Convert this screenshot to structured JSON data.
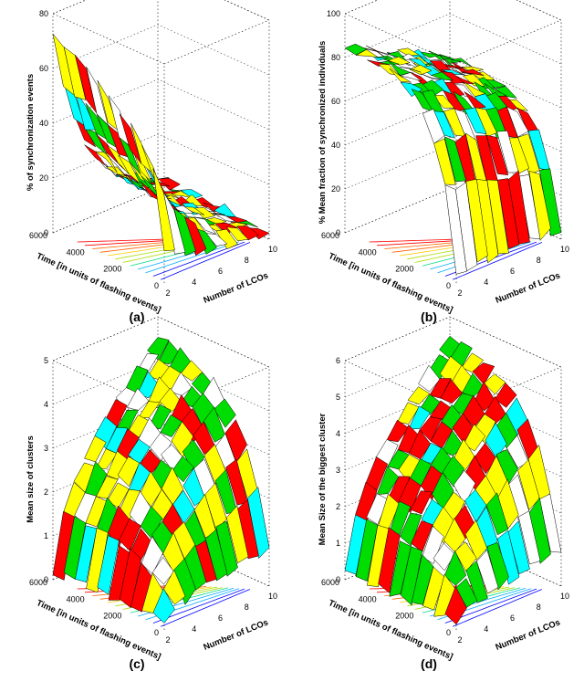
{
  "figure": {
    "panels": [
      {
        "label": "(a)"
      },
      {
        "label": "(b)"
      },
      {
        "label": "(c)"
      },
      {
        "label": "(d)"
      }
    ]
  },
  "palette": {
    "yellow": "#ffff00",
    "green": "#00dd00",
    "red": "#ff0000",
    "cyan": "#00ffff",
    "white": "#ffffff",
    "mesh": "#000000",
    "contours": [
      "#0000ff",
      "#00aaff",
      "#00dd88",
      "#aadd00",
      "#ffcc00",
      "#ff6600",
      "#ff0000"
    ]
  },
  "chart_data": [
    {
      "type": "surface",
      "label": "(a)",
      "zlabel": "% of synchronization events",
      "xlabel": "Number of LCOs",
      "ylabel": "Time [in units of flashing events]",
      "x_ticks": [
        "2",
        "4",
        "6",
        "8",
        "10"
      ],
      "y_ticks": [
        "0",
        "2000",
        "4000",
        "6000"
      ],
      "z_ticks": [
        "0",
        "20",
        "40",
        "60",
        "80"
      ],
      "xlim": [
        2,
        10
      ],
      "ylim": [
        0,
        6000
      ],
      "zlim": [
        0,
        80
      ],
      "surface_profile": "decay",
      "z_max": 72,
      "z_min": 2
    },
    {
      "type": "surface",
      "label": "(b)",
      "zlabel": "% Mean fraction of synchronized individuals",
      "xlabel": "Number of LCOs",
      "ylabel": "Time [in units of flashing events]",
      "x_ticks": [
        "2",
        "4",
        "6",
        "8",
        "10"
      ],
      "y_ticks": [
        "0",
        "2000",
        "4000",
        "6000"
      ],
      "z_ticks": [
        "0",
        "20",
        "40",
        "60",
        "80",
        "100"
      ],
      "xlim": [
        2,
        10
      ],
      "ylim": [
        0,
        6000
      ],
      "zlim": [
        0,
        100
      ],
      "surface_profile": "saturate",
      "z_max": 85,
      "z_min": 5
    },
    {
      "type": "surface",
      "label": "(c)",
      "zlabel": "Mean size of clusters",
      "xlabel": "Number of LCOs",
      "ylabel": "Time [in units of flashing events]",
      "x_ticks": [
        "2",
        "4",
        "6",
        "8",
        "10"
      ],
      "y_ticks": [
        "0",
        "2000",
        "4000",
        "6000"
      ],
      "z_ticks": [
        "0",
        "1",
        "2",
        "3",
        "4",
        "5"
      ],
      "xlim": [
        2,
        10
      ],
      "ylim": [
        0,
        6000
      ],
      "zlim": [
        0,
        5
      ],
      "surface_profile": "grow",
      "z_max": 4.6,
      "z_min": 0.2
    },
    {
      "type": "surface",
      "label": "(d)",
      "zlabel": "Mean Size of the biggest cluster",
      "xlabel": "Number of LCOs",
      "ylabel": "Time [in units of flashing events]",
      "x_ticks": [
        "2",
        "4",
        "6",
        "8",
        "10"
      ],
      "y_ticks": [
        "0",
        "2000",
        "4000",
        "6000"
      ],
      "z_ticks": [
        "0",
        "1",
        "2",
        "3",
        "4",
        "5",
        "6"
      ],
      "xlim": [
        2,
        10
      ],
      "ylim": [
        0,
        6000
      ],
      "zlim": [
        0,
        6
      ],
      "surface_profile": "grow",
      "z_max": 5.5,
      "z_min": 0.2
    }
  ]
}
